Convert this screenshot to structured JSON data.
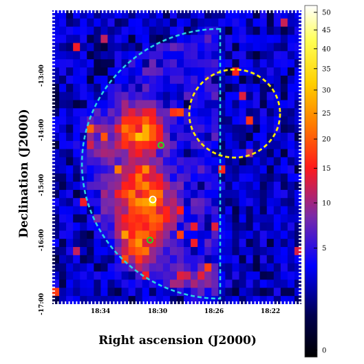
{
  "chart_data": {
    "type": "heatmap",
    "title": "",
    "xlabel": "Right ascension (J2000)",
    "ylabel": "Declination (J2000)",
    "x_ticks": [
      "18:34",
      "18:30",
      "18:26",
      "18:22"
    ],
    "y_ticks": [
      "-13:00",
      "-14:00",
      "-15:00",
      "-16:00",
      "-17:00"
    ],
    "colorbar": {
      "ticks": [
        50,
        45,
        40,
        35,
        30,
        25,
        20,
        15,
        10,
        5,
        0
      ],
      "range": [
        0,
        52
      ],
      "scale": "sqrt",
      "colormap": "black-blue-red-yellow-white"
    },
    "overlays": [
      {
        "name": "half-ellipse-region",
        "shape": "half-ellipse",
        "color": "#2ad1e0",
        "style": "dashed"
      },
      {
        "name": "circle-region",
        "shape": "circle",
        "color": "#ffea00",
        "style": "dashed"
      },
      {
        "name": "marker-upper",
        "shape": "small-circle",
        "color": "#22dd22"
      },
      {
        "name": "marker-center",
        "shape": "small-circle",
        "color": "#ffffff"
      },
      {
        "name": "marker-lower",
        "shape": "small-circle",
        "color": "#22dd22"
      }
    ],
    "grid": {
      "cols": 36,
      "rows": 36,
      "background": 2.2,
      "region_boost": 1.6,
      "sources": [
        {
          "x": 11.5,
          "y": 15.0,
          "amp": 14.0,
          "sx": 2.2,
          "sy": 1.8
        },
        {
          "x": 14.0,
          "y": 14.5,
          "amp": 10.0,
          "sx": 1.3,
          "sy": 2.0
        },
        {
          "x": 12.5,
          "y": 22.5,
          "amp": 16.0,
          "sx": 2.6,
          "sy": 2.8
        },
        {
          "x": 15.5,
          "y": 25.0,
          "amp": 9.0,
          "sx": 1.5,
          "sy": 1.8
        },
        {
          "x": 12.5,
          "y": 28.5,
          "amp": 15.0,
          "sx": 1.8,
          "sy": 1.8
        },
        {
          "x": 18.0,
          "y": 32.5,
          "amp": 7.0,
          "sx": 1.4,
          "sy": 1.2
        },
        {
          "x": 22.0,
          "y": 33.0,
          "amp": 5.0,
          "sx": 1.6,
          "sy": 1.2
        },
        {
          "x": 6.5,
          "y": 16.5,
          "amp": 4.0,
          "sx": 1.6,
          "sy": 1.6
        }
      ]
    }
  }
}
